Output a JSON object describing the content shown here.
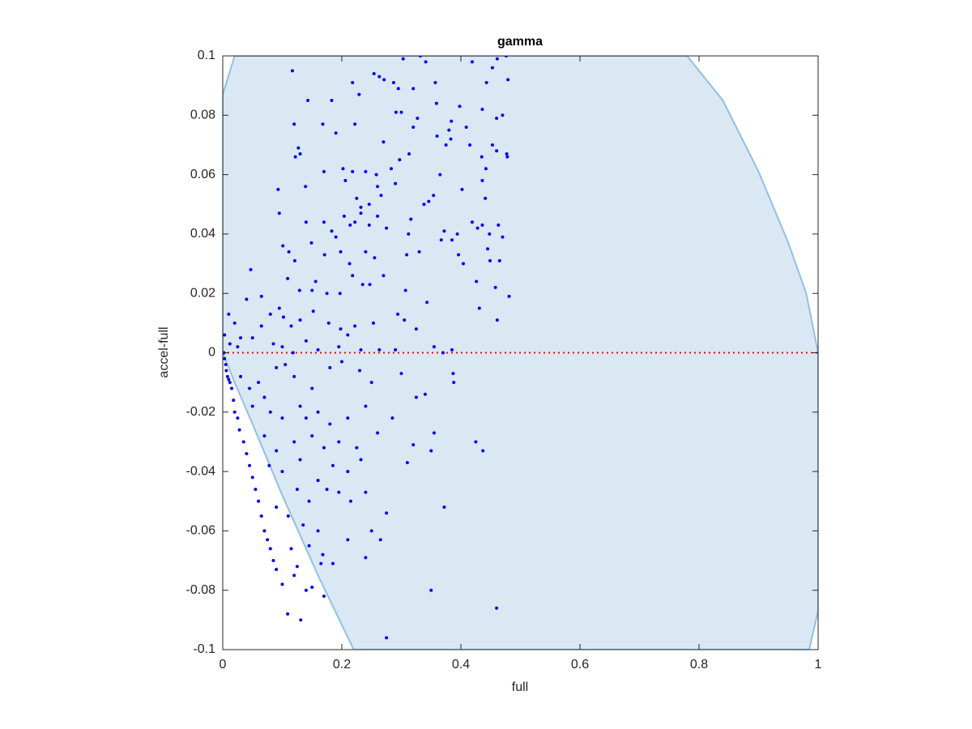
{
  "chart_data": {
    "type": "scatter",
    "title": "gamma",
    "xlabel": "full",
    "ylabel": "accel-full",
    "xlim": [
      0,
      1
    ],
    "ylim": [
      -0.1,
      0.1
    ],
    "xticks": [
      0,
      0.2,
      0.4,
      0.6,
      0.8,
      1
    ],
    "yticks": [
      -0.1,
      -0.08,
      -0.06,
      -0.04,
      -0.02,
      0,
      0.02,
      0.04,
      0.06,
      0.08,
      0.1
    ],
    "region": {
      "color": "#dae8f4",
      "edge_color": "#8fc0e6",
      "x": [
        0,
        0.02,
        0.78,
        0.84,
        0.9,
        0.95,
        0.98,
        1,
        1,
        0.985,
        0.22,
        0.16,
        0.1,
        0.05,
        0.02,
        0
      ],
      "y": [
        0.087,
        0.1,
        0.1,
        0.085,
        0.061,
        0.037,
        0.02,
        0,
        -0.087,
        -0.1,
        -0.1,
        -0.075,
        -0.048,
        -0.024,
        -0.01,
        0
      ]
    },
    "reference_line": {
      "value": 0,
      "color": "#ff0000"
    },
    "series": [
      {
        "color": "#0000ff",
        "x": [
          0.117,
          0.303,
          0.332,
          0.341,
          0.419,
          0.453,
          0.476,
          0.461,
          0.218,
          0.254,
          0.263,
          0.271,
          0.287,
          0.295,
          0.32,
          0.357,
          0.443,
          0.479,
          0.143,
          0.183,
          0.359,
          0.229,
          0.12,
          0.168,
          0.222,
          0.291,
          0.3,
          0.327,
          0.409,
          0.436,
          0.46,
          0.47,
          0.398,
          0.384,
          0.38,
          0.383,
          0.415,
          0.375,
          0.36,
          0.32,
          0.27,
          0.19,
          0.127,
          0.13,
          0.122,
          0.17,
          0.202,
          0.218,
          0.24,
          0.258,
          0.283,
          0.297,
          0.313,
          0.365,
          0.435,
          0.442,
          0.453,
          0.477,
          0.478,
          0.46,
          0.093,
          0.139,
          0.206,
          0.26,
          0.266,
          0.29,
          0.338,
          0.346,
          0.354,
          0.402,
          0.436,
          0.441,
          0.225,
          0.246,
          0.232,
          0.095,
          0.14,
          0.17,
          0.183,
          0.204,
          0.214,
          0.19,
          0.222,
          0.232,
          0.246,
          0.26,
          0.275,
          0.316,
          0.312,
          0.372,
          0.385,
          0.394,
          0.419,
          0.428,
          0.436,
          0.448,
          0.463,
          0.47,
          0.047,
          0.101,
          0.111,
          0.121,
          0.149,
          0.171,
          0.198,
          0.213,
          0.24,
          0.255,
          0.309,
          0.33,
          0.367,
          0.396,
          0.404,
          0.445,
          0.449,
          0.465,
          0.04,
          0.065,
          0.109,
          0.129,
          0.15,
          0.156,
          0.175,
          0.197,
          0.218,
          0.235,
          0.247,
          0.27,
          0.307,
          0.343,
          0.426,
          0.458,
          0.431,
          0.461,
          0.481,
          0.01,
          0.02,
          0.03,
          0.065,
          0.08,
          0.095,
          0.102,
          0.115,
          0.13,
          0.152,
          0.178,
          0.198,
          0.21,
          0.222,
          0.253,
          0.294,
          0.305,
          0.325,
          0.003,
          0.012,
          0.025,
          0.05,
          0.085,
          0.1,
          0.118,
          0.14,
          0.16,
          0.195,
          0.232,
          0.263,
          0.29,
          0.355,
          0.37,
          0.385,
          0.002,
          0.003,
          0.005,
          0.006,
          0.008,
          0.01,
          0.012,
          0.015,
          0.018,
          0.02,
          0.025,
          0.028,
          0.035,
          0.04,
          0.045,
          0.05,
          0.055,
          0.06,
          0.065,
          0.07,
          0.075,
          0.08,
          0.085,
          0.09,
          0.1,
          0.109,
          0.131,
          0.03,
          0.045,
          0.06,
          0.07,
          0.09,
          0.105,
          0.12,
          0.15,
          0.18,
          0.2,
          0.23,
          0.25,
          0.3,
          0.325,
          0.34,
          0.387,
          0.388,
          0.05,
          0.08,
          0.1,
          0.13,
          0.14,
          0.16,
          0.18,
          0.21,
          0.24,
          0.285,
          0.355,
          0.07,
          0.09,
          0.12,
          0.15,
          0.17,
          0.195,
          0.225,
          0.26,
          0.32,
          0.35,
          0.31,
          0.425,
          0.437,
          0.078,
          0.1,
          0.13,
          0.16,
          0.185,
          0.21,
          0.232,
          0.125,
          0.145,
          0.175,
          0.195,
          0.215,
          0.24,
          0.09,
          0.11,
          0.135,
          0.16,
          0.25,
          0.265,
          0.275,
          0.372,
          0.115,
          0.145,
          0.168,
          0.185,
          0.21,
          0.24,
          0.12,
          0.15,
          0.17,
          0.165,
          0.14,
          0.35,
          0.46,
          0.275,
          0.125
        ],
        "y": [
          0.095,
          0.099,
          0.1,
          0.098,
          0.098,
          0.096,
          0.1,
          0.099,
          0.091,
          0.094,
          0.093,
          0.092,
          0.091,
          0.089,
          0.089,
          0.091,
          0.091,
          0.092,
          0.085,
          0.085,
          0.084,
          0.087,
          0.077,
          0.077,
          0.077,
          0.081,
          0.081,
          0.079,
          0.076,
          0.082,
          0.079,
          0.08,
          0.083,
          0.078,
          0.075,
          0.072,
          0.07,
          0.07,
          0.073,
          0.076,
          0.071,
          0.074,
          0.069,
          0.067,
          0.066,
          0.061,
          0.062,
          0.061,
          0.061,
          0.06,
          0.062,
          0.065,
          0.067,
          0.06,
          0.066,
          0.062,
          0.07,
          0.067,
          0.066,
          0.068,
          0.055,
          0.056,
          0.058,
          0.056,
          0.053,
          0.057,
          0.05,
          0.051,
          0.053,
          0.055,
          0.058,
          0.052,
          0.052,
          0.05,
          0.049,
          0.047,
          0.044,
          0.044,
          0.041,
          0.046,
          0.043,
          0.039,
          0.044,
          0.047,
          0.043,
          0.046,
          0.042,
          0.045,
          0.04,
          0.041,
          0.038,
          0.04,
          0.044,
          0.042,
          0.043,
          0.04,
          0.043,
          0.039,
          0.028,
          0.036,
          0.034,
          0.031,
          0.037,
          0.033,
          0.034,
          0.03,
          0.034,
          0.032,
          0.033,
          0.034,
          0.038,
          0.033,
          0.03,
          0.035,
          0.031,
          0.031,
          0.018,
          0.019,
          0.025,
          0.021,
          0.021,
          0.024,
          0.02,
          0.02,
          0.026,
          0.023,
          0.023,
          0.026,
          0.021,
          0.017,
          0.024,
          0.022,
          0.015,
          0.011,
          0.019,
          0.013,
          0.01,
          0.005,
          0.009,
          0.013,
          0.015,
          0.012,
          0.009,
          0.011,
          0.014,
          0.01,
          0.008,
          0.006,
          0.009,
          0.01,
          0.013,
          0.011,
          0.008,
          0.006,
          0.003,
          0.002,
          0.005,
          0.003,
          0.002,
          0,
          0.004,
          0.001,
          0.002,
          0.001,
          0.001,
          0.001,
          0.002,
          0,
          0.001,
          0,
          -0.002,
          -0.004,
          -0.006,
          -0.008,
          -0.009,
          -0.01,
          -0.012,
          -0.016,
          -0.02,
          -0.022,
          -0.026,
          -0.03,
          -0.034,
          -0.038,
          -0.042,
          -0.046,
          -0.05,
          -0.055,
          -0.06,
          -0.063,
          -0.066,
          -0.07,
          -0.073,
          -0.078,
          -0.088,
          -0.09,
          -0.008,
          -0.012,
          -0.01,
          -0.015,
          -0.005,
          -0.004,
          -0.008,
          -0.012,
          -0.005,
          -0.003,
          -0.006,
          -0.01,
          -0.007,
          -0.015,
          -0.014,
          -0.007,
          -0.01,
          -0.018,
          -0.02,
          -0.022,
          -0.018,
          -0.022,
          -0.02,
          -0.024,
          -0.022,
          -0.018,
          -0.022,
          -0.027,
          -0.028,
          -0.033,
          -0.03,
          -0.028,
          -0.032,
          -0.03,
          -0.032,
          -0.027,
          -0.031,
          -0.033,
          -0.037,
          -0.03,
          -0.033,
          -0.038,
          -0.04,
          -0.036,
          -0.043,
          -0.038,
          -0.04,
          -0.036,
          -0.046,
          -0.05,
          -0.046,
          -0.047,
          -0.05,
          -0.047,
          -0.052,
          -0.055,
          -0.058,
          -0.06,
          -0.06,
          -0.063,
          -0.054,
          -0.052,
          -0.066,
          -0.065,
          -0.068,
          -0.071,
          -0.063,
          -0.069,
          -0.075,
          -0.079,
          -0.082,
          -0.071,
          -0.08,
          -0.08,
          -0.086,
          -0.096,
          -0.072
        ]
      }
    ]
  }
}
